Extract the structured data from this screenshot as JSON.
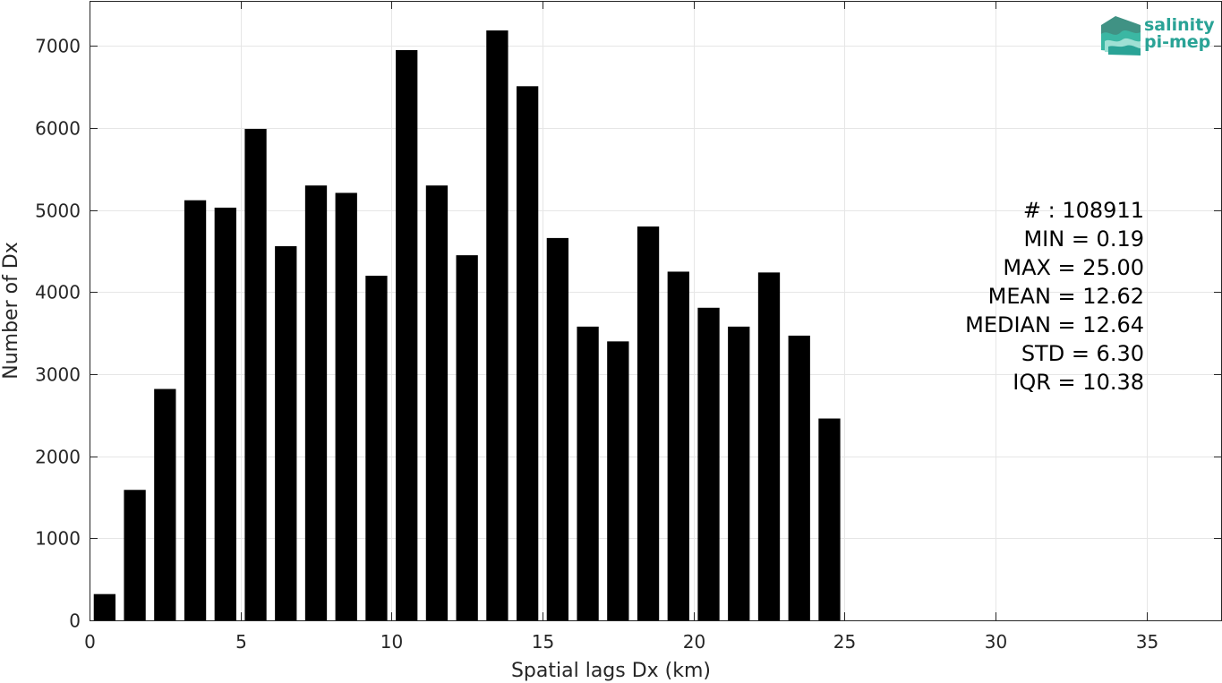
{
  "chart_data": {
    "type": "bar",
    "xlabel": "Spatial lags Dx (km)",
    "ylabel": "Number of Dx",
    "xlim": [
      0,
      37.5
    ],
    "ylim": [
      0,
      7550
    ],
    "xticks": [
      0,
      5,
      10,
      15,
      20,
      25,
      30,
      35
    ],
    "yticks": [
      0,
      1000,
      2000,
      3000,
      4000,
      5000,
      6000,
      7000
    ],
    "grid": true,
    "bar_color": "#000000",
    "bar_width": 0.72,
    "x": [
      0.5,
      1.5,
      2.5,
      3.5,
      4.5,
      5.5,
      6.5,
      7.5,
      8.5,
      9.5,
      10.5,
      11.5,
      12.5,
      13.5,
      14.5,
      15.5,
      16.5,
      17.5,
      18.5,
      19.5,
      20.5,
      21.5,
      22.5,
      23.5,
      24.5
    ],
    "values": [
      320,
      1590,
      2820,
      5120,
      5030,
      5990,
      4560,
      5300,
      5210,
      4200,
      6950,
      5300,
      4450,
      7190,
      6510,
      4660,
      3580,
      3400,
      4800,
      4250,
      3810,
      3580,
      4240,
      3470,
      2460
    ],
    "stats": [
      "# : 108911",
      "MIN = 0.19",
      "MAX =  25.00",
      "MEAN = 12.62",
      "MEDIAN = 12.64",
      "STD = 6.30",
      "IQR = 10.38"
    ]
  },
  "logo": {
    "line1": "salinity",
    "line2": "pi-mep",
    "color": "#2aa396"
  }
}
